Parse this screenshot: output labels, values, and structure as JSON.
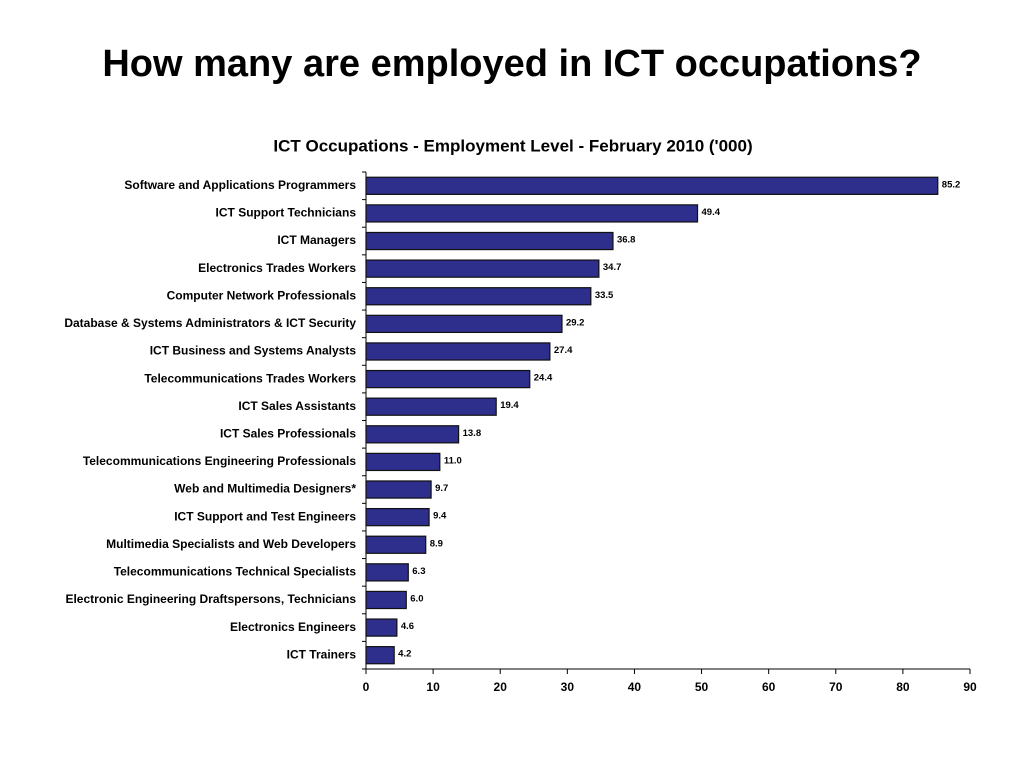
{
  "heading": "How many are employed in ICT occupations?",
  "chart_data": {
    "type": "barh",
    "title": "ICT Occupations - Employment Level - February 2010 ('000)",
    "categories": [
      "Software and Applications Programmers",
      "ICT Support Technicians",
      "ICT Managers",
      "Electronics Trades Workers",
      "Computer Network Professionals",
      "Database & Systems Administrators & ICT Security",
      "ICT Business and Systems Analysts",
      "Telecommunications Trades Workers",
      "ICT Sales Assistants",
      "ICT Sales Professionals",
      "Telecommunications Engineering Professionals",
      "Web and Multimedia Designers*",
      "ICT Support and Test Engineers",
      "Multimedia Specialists and Web Developers",
      "Telecommunications Technical Specialists",
      "Electronic Engineering Draftspersons, Technicians",
      "Electronics Engineers",
      "ICT Trainers"
    ],
    "values": [
      85.2,
      49.4,
      36.8,
      34.7,
      33.5,
      29.2,
      27.4,
      24.4,
      19.4,
      13.8,
      11,
      9.7,
      9.4,
      8.9,
      6.3,
      6,
      4.6,
      4.2
    ],
    "value_labels": [
      "85.2",
      "49.4",
      "36.8",
      "34.7",
      "33.5",
      "29.2",
      "27.4",
      "24.4",
      "19.4",
      "13.8",
      "11.0",
      "9.7",
      "9.4",
      "8.9",
      "6.3",
      "6.0",
      "4.6",
      "4.2"
    ],
    "color": "#2e2e8c",
    "xlim": [
      0,
      90
    ],
    "xticks": [
      0,
      10,
      20,
      30,
      40,
      50,
      60,
      70,
      80,
      90
    ]
  }
}
